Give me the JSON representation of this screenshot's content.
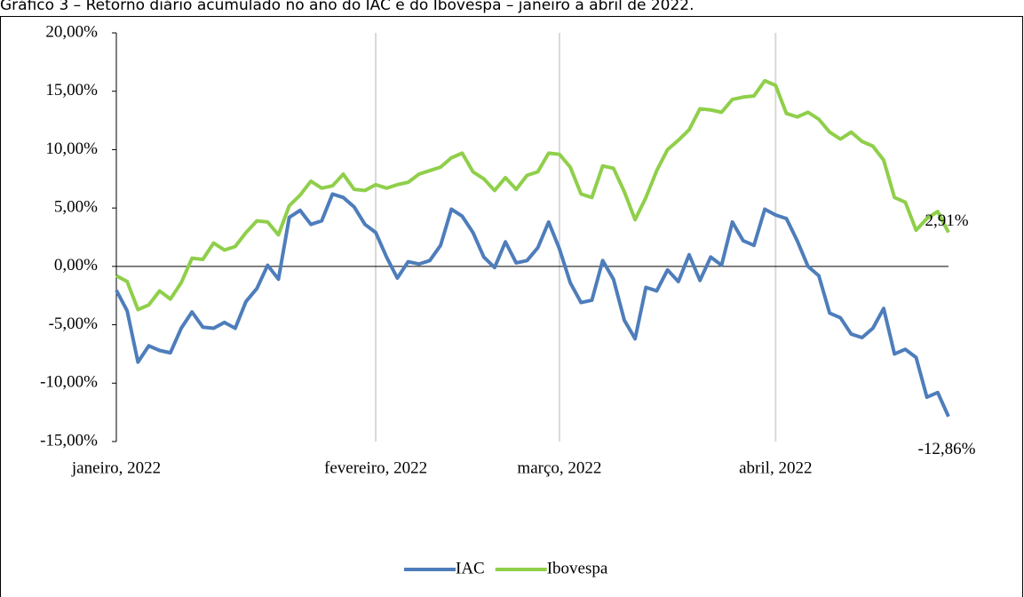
{
  "chart_data": {
    "type": "line",
    "title": "Gráfico 3 – Retorno diário acumulado no ano do IAC e do Ibovespa – janeiro a abril de 2022.",
    "categories": [
      "janeiro, 2022",
      null,
      null,
      null,
      null,
      null,
      null,
      null,
      null,
      null,
      null,
      null,
      null,
      null,
      null,
      null,
      null,
      null,
      null,
      null,
      null,
      null,
      null,
      null,
      "fevereiro, 2022",
      null,
      null,
      null,
      null,
      null,
      null,
      null,
      null,
      null,
      null,
      null,
      null,
      null,
      null,
      null,
      null,
      "março, 2022",
      null,
      null,
      null,
      null,
      null,
      null,
      null,
      null,
      null,
      null,
      null,
      null,
      null,
      null,
      null,
      null,
      null,
      null,
      null,
      "abril, 2022",
      null,
      null,
      null,
      null,
      null,
      null,
      null,
      null,
      null,
      null,
      null,
      null,
      null,
      null,
      null,
      null
    ],
    "series": [
      {
        "name": "IAC",
        "color": "#4e7dbb",
        "end_label": "-12,86%",
        "values": [
          -2.05,
          -3.8,
          -8.2,
          -6.8,
          -7.2,
          -7.4,
          -5.3,
          -3.9,
          -5.2,
          -5.3,
          -4.8,
          -5.3,
          -3.0,
          -1.9,
          0.1,
          -1.1,
          4.2,
          4.8,
          3.6,
          3.9,
          6.2,
          5.9,
          5.1,
          3.6,
          2.9,
          0.8,
          -1.0,
          0.4,
          0.2,
          0.5,
          1.8,
          4.9,
          4.3,
          2.9,
          0.8,
          -0.1,
          2.1,
          0.3,
          0.5,
          1.6,
          3.8,
          1.5,
          -1.4,
          -3.1,
          -2.9,
          0.5,
          -1.1,
          -4.6,
          -6.2,
          -1.8,
          -2.1,
          -0.3,
          -1.3,
          1.0,
          -1.2,
          0.8,
          0.1,
          3.8,
          2.2,
          1.8,
          4.9,
          4.4,
          4.1,
          2.2,
          0.0,
          -0.8,
          -4.0,
          -4.4,
          -5.8,
          -6.1,
          -5.3,
          -3.6,
          -7.5,
          -7.1,
          -7.8,
          -11.2,
          -10.8,
          -12.86
        ]
      },
      {
        "name": "Ibovespa",
        "color": "#8fcf4a",
        "end_label": "2,91%",
        "values": [
          -0.8,
          -1.3,
          -3.7,
          -3.3,
          -2.1,
          -2.8,
          -1.4,
          0.7,
          0.6,
          2.0,
          1.4,
          1.7,
          2.9,
          3.9,
          3.8,
          2.7,
          5.2,
          6.1,
          7.3,
          6.7,
          6.9,
          7.9,
          6.6,
          6.5,
          7.0,
          6.7,
          7.0,
          7.2,
          7.9,
          8.2,
          8.5,
          9.3,
          9.7,
          8.1,
          7.5,
          6.5,
          7.6,
          6.6,
          7.8,
          8.1,
          9.7,
          9.6,
          8.5,
          6.2,
          5.9,
          8.6,
          8.4,
          6.4,
          4.0,
          5.9,
          8.2,
          10.0,
          10.8,
          11.7,
          13.5,
          13.4,
          13.2,
          14.3,
          14.5,
          14.6,
          15.9,
          15.5,
          13.1,
          12.8,
          13.2,
          12.6,
          11.5,
          10.9,
          11.5,
          10.7,
          10.3,
          9.1,
          5.9,
          5.5,
          3.1,
          4.1,
          4.7,
          2.91
        ]
      }
    ],
    "ylim": [
      -15,
      20
    ],
    "yticks": [
      {
        "value": -15,
        "label": "-15,00%"
      },
      {
        "value": -10,
        "label": "-10,00%"
      },
      {
        "value": -5,
        "label": "-5,00%"
      },
      {
        "value": 0,
        "label": "0,00%"
      },
      {
        "value": 5,
        "label": "5,00%"
      },
      {
        "value": 10,
        "label": "10,00%"
      },
      {
        "value": 15,
        "label": "15,00%"
      },
      {
        "value": 20,
        "label": "20,00%"
      }
    ],
    "negative_color": "#ff0000",
    "grid": "x",
    "legend": "bottom"
  }
}
